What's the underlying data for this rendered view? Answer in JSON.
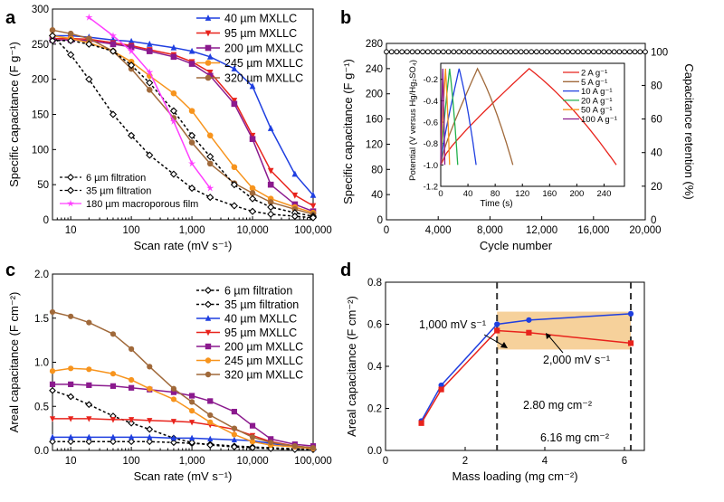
{
  "chart_data": [
    {
      "panel": "a",
      "type": "line",
      "xscale": "log",
      "xlabel": "Scan rate (mV s⁻¹)",
      "ylabel": "Specific capacitance (F g⁻¹)",
      "xlim": [
        5,
        100000
      ],
      "ylim": [
        0,
        300
      ],
      "xticks": [
        10,
        100,
        1000,
        10000,
        100000
      ],
      "xticklabels": [
        "10",
        "100",
        "1,000",
        "10,000",
        "100,000"
      ],
      "yticks": [
        0,
        50,
        100,
        150,
        200,
        250,
        300
      ],
      "yticklabels": [
        "0",
        "50",
        "100",
        "150",
        "200",
        "250",
        "300"
      ],
      "legend": "top-right",
      "series": [
        {
          "name": "40 µm MXLLC",
          "color": "#1f3fe0",
          "marker": "triangle",
          "dashed": false,
          "x": [
            5,
            10,
            20,
            50,
            100,
            200,
            500,
            1000,
            2000,
            5000,
            10000,
            20000,
            50000,
            100000
          ],
          "y": [
            262,
            262,
            260,
            256,
            254,
            250,
            245,
            240,
            232,
            215,
            190,
            130,
            65,
            35
          ]
        },
        {
          "name": "95 µm MXLLC",
          "color": "#e8231c",
          "marker": "triangle-down",
          "dashed": false,
          "x": [
            5,
            10,
            20,
            50,
            100,
            200,
            500,
            1000,
            2000,
            5000,
            10000,
            20000,
            50000,
            100000
          ],
          "y": [
            258,
            258,
            257,
            252,
            248,
            242,
            235,
            225,
            210,
            170,
            120,
            70,
            35,
            20
          ]
        },
        {
          "name": "200 µm MXLLC",
          "color": "#8b1a8e",
          "marker": "square",
          "dashed": false,
          "x": [
            5,
            10,
            20,
            50,
            100,
            200,
            500,
            1000,
            2000,
            5000,
            10000,
            20000,
            50000,
            100000
          ],
          "y": [
            256,
            256,
            255,
            250,
            246,
            240,
            232,
            222,
            205,
            165,
            115,
            50,
            22,
            12
          ]
        },
        {
          "name": "245 µm MXLLC",
          "color": "#f7941d",
          "marker": "circle",
          "dashed": false,
          "x": [
            5,
            10,
            20,
            50,
            100,
            200,
            500,
            1000,
            2000,
            5000,
            10000,
            20000,
            50000,
            100000
          ],
          "y": [
            262,
            258,
            252,
            240,
            225,
            205,
            180,
            155,
            120,
            75,
            45,
            30,
            18,
            10
          ]
        },
        {
          "name": "320 µm MXLLC",
          "color": "#a0693a",
          "marker": "circle",
          "dashed": false,
          "x": [
            5,
            10,
            20,
            50,
            100,
            200,
            500,
            1000,
            2000,
            5000,
            10000,
            20000,
            50000,
            100000
          ],
          "y": [
            270,
            265,
            258,
            240,
            215,
            185,
            145,
            110,
            80,
            52,
            38,
            25,
            15,
            8
          ]
        },
        {
          "name": "6 µm filtration",
          "color": "#000000",
          "marker": "open-diamond",
          "dashed": true,
          "x": [
            5,
            10,
            20,
            50,
            100,
            200,
            500,
            1000,
            2000,
            5000,
            10000,
            20000,
            50000,
            100000
          ],
          "y": [
            255,
            255,
            250,
            240,
            220,
            195,
            155,
            120,
            90,
            50,
            30,
            18,
            10,
            5
          ]
        },
        {
          "name": "35 µm filtration",
          "color": "#000000",
          "marker": "open-diamond",
          "dashed": true,
          "x": [
            5,
            10,
            20,
            50,
            100,
            200,
            500,
            1000,
            2000,
            5000,
            10000,
            20000,
            50000,
            100000
          ],
          "y": [
            262,
            235,
            200,
            150,
            120,
            92,
            65,
            45,
            32,
            20,
            12,
            8,
            5,
            3
          ]
        },
        {
          "name": "180 µm macroporous film",
          "color": "#ff3dff",
          "marker": "star",
          "dashed": false,
          "x": [
            20,
            50,
            100,
            200,
            500,
            1000,
            2000
          ],
          "y": [
            288,
            262,
            240,
            210,
            140,
            80,
            45
          ]
        }
      ]
    },
    {
      "panel": "b",
      "type": "scatter",
      "xlabel": "Cycle number",
      "ylabel": "Specific capacitance (F g⁻¹)",
      "y2label": "Capacitance retention (%)",
      "xlim": [
        0,
        20000
      ],
      "ylim": [
        0,
        280
      ],
      "y2lim": [
        0,
        105
      ],
      "xticks": [
        0,
        4000,
        8000,
        12000,
        16000,
        20000
      ],
      "xticklabels": [
        "0",
        "4,000",
        "8,000",
        "12,000",
        "16,000",
        "20,000"
      ],
      "yticks": [
        0,
        40,
        80,
        120,
        160,
        200,
        240,
        280
      ],
      "yticklabels": [
        "0",
        "40",
        "80",
        "120",
        "160",
        "200",
        "240",
        "280"
      ],
      "y2ticks": [
        0,
        20,
        40,
        60,
        80,
        100
      ],
      "y2ticklabels": [
        "0",
        "20",
        "40",
        "60",
        "80",
        "100"
      ],
      "series": [
        {
          "name": "Capacitance retention",
          "axis": "y2",
          "color": "#000000",
          "marker": "open-circle",
          "x_start": 0,
          "x_end": 20000,
          "x_step": 400,
          "y": 100
        }
      ],
      "inset": {
        "type": "line",
        "xlabel": "Time (s)",
        "ylabel": "Potential (V versus Hg/Hg₂SO₄)",
        "xlim": [
          0,
          270
        ],
        "ylim": [
          -1.2,
          -0.05
        ],
        "xticks": [
          0,
          40,
          80,
          120,
          160,
          200,
          240
        ],
        "xticklabels": [
          "0",
          "40",
          "80",
          "120",
          "160",
          "200",
          "240"
        ],
        "yticks": [
          -1.2,
          -1.0,
          -0.8,
          -0.6,
          -0.4,
          -0.2
        ],
        "yticklabels": [
          "-1.2",
          "-1.0",
          "-0.8",
          "-0.6",
          "-0.4",
          "-0.2"
        ],
        "legend": "top-right",
        "series": [
          {
            "name": "2 A g⁻¹",
            "color": "#e8231c",
            "t_peak": 130,
            "t_end": 258
          },
          {
            "name": "5 A g⁻¹",
            "color": "#a0693a",
            "t_peak": 54,
            "t_end": 106
          },
          {
            "name": "10 A g⁻¹",
            "color": "#1f3fe0",
            "t_peak": 27,
            "t_end": 52
          },
          {
            "name": "20 A g⁻¹",
            "color": "#22b14c",
            "t_peak": 13,
            "t_end": 25
          },
          {
            "name": "50 A g⁻¹",
            "color": "#f7941d",
            "t_peak": 7,
            "t_end": 13
          },
          {
            "name": "100 A g⁻¹",
            "color": "#8b1a8e",
            "t_peak": 3,
            "t_end": 6
          }
        ],
        "v_min": -1.0,
        "v_max": -0.1
      }
    },
    {
      "panel": "c",
      "type": "line",
      "xscale": "log",
      "xlabel": "Scan rate (mV s⁻¹)",
      "ylabel": "Areal capacitance (F cm⁻²)",
      "xlim": [
        5,
        100000
      ],
      "ylim": [
        0,
        2.0
      ],
      "xticks": [
        10,
        100,
        1000,
        10000,
        100000
      ],
      "xticklabels": [
        "10",
        "100",
        "1,000",
        "10,000",
        "100,000"
      ],
      "yticks": [
        0,
        0.5,
        1.0,
        1.5,
        2.0
      ],
      "yticklabels": [
        "0.0",
        "0.5",
        "1.0",
        "1.5",
        "2.0"
      ],
      "legend": "top-right",
      "series": [
        {
          "name": "6 µm filtration",
          "color": "#000000",
          "marker": "open-diamond",
          "dashed": true,
          "x": [
            5,
            10,
            20,
            50,
            100,
            200,
            500,
            1000,
            2000,
            5000,
            10000,
            20000,
            50000,
            100000
          ],
          "y": [
            0.1,
            0.1,
            0.1,
            0.1,
            0.1,
            0.1,
            0.09,
            0.08,
            0.07,
            0.05,
            0.04,
            0.03,
            0.02,
            0.01
          ]
        },
        {
          "name": "35 µm filtration",
          "color": "#000000",
          "marker": "open-diamond",
          "dashed": true,
          "x": [
            5,
            10,
            20,
            50,
            100,
            200,
            500,
            1000,
            2000,
            5000,
            10000,
            20000,
            50000,
            100000
          ],
          "y": [
            0.68,
            0.61,
            0.52,
            0.39,
            0.31,
            0.24,
            0.14,
            0.09,
            0.06,
            0.04,
            0.03,
            0.02,
            0.01,
            0.01
          ]
        },
        {
          "name": "40 µm MXLLC",
          "color": "#1f3fe0",
          "marker": "triangle",
          "dashed": false,
          "x": [
            5,
            10,
            20,
            50,
            100,
            200,
            500,
            1000,
            2000,
            5000,
            10000,
            20000,
            50000,
            100000
          ],
          "y": [
            0.15,
            0.15,
            0.15,
            0.15,
            0.15,
            0.15,
            0.14,
            0.14,
            0.13,
            0.12,
            0.11,
            0.08,
            0.04,
            0.02
          ]
        },
        {
          "name": "95 µm MXLLC",
          "color": "#e8231c",
          "marker": "triangle-down",
          "dashed": false,
          "x": [
            5,
            10,
            20,
            50,
            100,
            200,
            500,
            1000,
            2000,
            5000,
            10000,
            20000,
            50000,
            100000
          ],
          "y": [
            0.36,
            0.36,
            0.36,
            0.35,
            0.35,
            0.34,
            0.33,
            0.32,
            0.29,
            0.24,
            0.17,
            0.1,
            0.05,
            0.03
          ]
        },
        {
          "name": "200 µm MXLLC",
          "color": "#8b1a8e",
          "marker": "square",
          "dashed": false,
          "x": [
            5,
            10,
            20,
            50,
            100,
            200,
            500,
            1000,
            2000,
            5000,
            10000,
            20000,
            50000,
            100000
          ],
          "y": [
            0.75,
            0.75,
            0.74,
            0.73,
            0.71,
            0.69,
            0.66,
            0.62,
            0.56,
            0.44,
            0.28,
            0.13,
            0.07,
            0.05
          ]
        },
        {
          "name": "245 µm MXLLC",
          "color": "#f7941d",
          "marker": "circle",
          "dashed": false,
          "x": [
            5,
            10,
            20,
            50,
            100,
            200,
            500,
            1000,
            2000,
            5000,
            10000,
            20000,
            50000,
            100000
          ],
          "y": [
            0.9,
            0.93,
            0.92,
            0.87,
            0.8,
            0.7,
            0.58,
            0.45,
            0.32,
            0.18,
            0.1,
            0.06,
            0.04,
            0.02
          ]
        },
        {
          "name": "320 µm MXLLC",
          "color": "#a0693a",
          "marker": "circle",
          "dashed": false,
          "x": [
            5,
            10,
            20,
            50,
            100,
            200,
            500,
            1000,
            2000,
            5000,
            10000,
            20000,
            50000,
            100000
          ],
          "y": [
            1.57,
            1.52,
            1.45,
            1.32,
            1.15,
            0.95,
            0.7,
            0.55,
            0.4,
            0.25,
            0.15,
            0.09,
            0.05,
            0.03
          ]
        }
      ]
    },
    {
      "panel": "d",
      "type": "line",
      "xlabel": "Mass loading (mg cm⁻²)",
      "ylabel": "Areal capacitance (F cm⁻²)",
      "xlim": [
        0,
        6.5
      ],
      "ylim": [
        0,
        0.8
      ],
      "xticks": [
        0,
        2,
        4,
        6
      ],
      "xticklabels": [
        "0",
        "2",
        "4",
        "6"
      ],
      "yticks": [
        0,
        0.2,
        0.4,
        0.6,
        0.8
      ],
      "yticklabels": [
        "0.0",
        "0.2",
        "0.4",
        "0.6",
        "0.8"
      ],
      "series": [
        {
          "name": "1,000 mV s⁻¹",
          "color": "#1f3fe0",
          "marker": "circle",
          "x": [
            0.9,
            1.4,
            2.8,
            3.6,
            6.16
          ],
          "y": [
            0.14,
            0.31,
            0.6,
            0.62,
            0.65
          ]
        },
        {
          "name": "2,000 mV s⁻¹",
          "color": "#e8231c",
          "marker": "square",
          "x": [
            0.9,
            1.4,
            2.8,
            3.6,
            6.16
          ],
          "y": [
            0.13,
            0.29,
            0.57,
            0.56,
            0.51
          ]
        }
      ],
      "vlines": [
        2.8,
        6.16
      ],
      "shaded_region": {
        "x": [
          2.8,
          6.16
        ],
        "y": [
          0.48,
          0.66
        ],
        "color": "#f5c98a"
      },
      "annotations": {
        "mass1": "2.80 mg cm⁻²",
        "mass2": "6.16 mg cm⁻²",
        "label_a": "1,000 mV s⁻¹",
        "label_b": "2,000 mV s⁻¹"
      }
    }
  ],
  "panel_letters": {
    "a": "a",
    "b": "b",
    "c": "c",
    "d": "d"
  }
}
